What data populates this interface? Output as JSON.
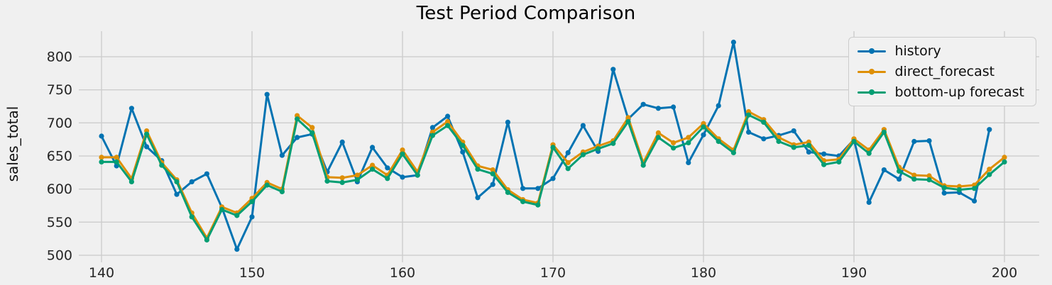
{
  "title": "Test Period Comparison",
  "ylabel": "sales_total",
  "colors": {
    "background": "#f0f0f0",
    "grid": "#cdcdcd",
    "history": "#0173b2",
    "direct_forecast": "#de8f05",
    "bottom_up_forecast": "#029e73"
  },
  "legend": {
    "items": [
      {
        "label": "history",
        "color": "#0173b2"
      },
      {
        "label": "direct_forecast",
        "color": "#de8f05"
      },
      {
        "label": "bottom-up forecast",
        "color": "#029e73"
      }
    ]
  },
  "chart_data": {
    "type": "line",
    "title": "Test Period Comparison",
    "xlabel": "",
    "ylabel": "sales_total",
    "grid": true,
    "legend_position": "upper right",
    "marker": "o",
    "xticks": [
      140,
      150,
      160,
      170,
      180,
      190,
      200
    ],
    "yticks": [
      500,
      550,
      600,
      650,
      700,
      750,
      800
    ],
    "xlim": [
      138.49,
      202.31
    ],
    "ylim": [
      489.3,
      838.6
    ],
    "x": [
      140,
      141,
      142,
      143,
      144,
      145,
      146,
      147,
      148,
      149,
      150,
      151,
      152,
      153,
      154,
      155,
      156,
      157,
      158,
      159,
      160,
      161,
      162,
      163,
      164,
      165,
      166,
      167,
      168,
      169,
      170,
      171,
      172,
      173,
      174,
      175,
      176,
      177,
      178,
      179,
      180,
      181,
      182,
      183,
      184,
      185,
      186,
      187,
      188,
      189,
      190,
      191,
      192,
      193,
      194,
      195,
      196,
      197,
      198,
      199,
      200
    ],
    "series": [
      {
        "name": "history",
        "color": "#0173b2",
        "values": [
          680,
          635,
          722,
          664,
          643,
          592,
          611,
          623,
          572,
          509,
          558,
          743,
          651,
          678,
          683,
          626,
          671,
          611,
          663,
          632,
          618,
          621,
          693,
          710,
          656,
          587,
          607,
          701,
          601,
          601,
          616,
          655,
          696,
          657,
          781,
          706,
          728,
          722,
          724,
          640,
          682,
          726,
          822,
          686,
          676,
          681,
          688,
          656,
          653,
          650,
          675,
          580,
          629,
          615,
          672,
          673,
          594,
          595,
          582,
          690,
          null
        ]
      },
      {
        "name": "direct_forecast",
        "color": "#de8f05",
        "values": [
          648,
          648,
          616,
          688,
          640,
          614,
          564,
          526,
          573,
          564,
          586,
          610,
          600,
          711,
          693,
          618,
          617,
          621,
          636,
          621,
          659,
          626,
          686,
          702,
          671,
          635,
          629,
          599,
          584,
          579,
          667,
          640,
          656,
          665,
          673,
          708,
          640,
          685,
          670,
          678,
          699,
          676,
          659,
          717,
          705,
          678,
          667,
          671,
          643,
          645,
          676,
          659,
          690,
          633,
          621,
          620,
          605,
          604,
          606,
          630,
          648
        ]
      },
      {
        "name": "bottom-up forecast",
        "color": "#029e73",
        "values": [
          641,
          641,
          611,
          683,
          636,
          611,
          558,
          523,
          569,
          560,
          581,
          606,
          596,
          706,
          685,
          612,
          610,
          614,
          630,
          616,
          653,
          621,
          681,
          696,
          666,
          630,
          623,
          595,
          581,
          576,
          663,
          631,
          652,
          661,
          669,
          702,
          636,
          678,
          662,
          670,
          694,
          672,
          655,
          712,
          701,
          672,
          663,
          666,
          637,
          641,
          672,
          654,
          686,
          627,
          615,
          614,
          602,
          599,
          601,
          622,
          641
        ]
      }
    ]
  }
}
